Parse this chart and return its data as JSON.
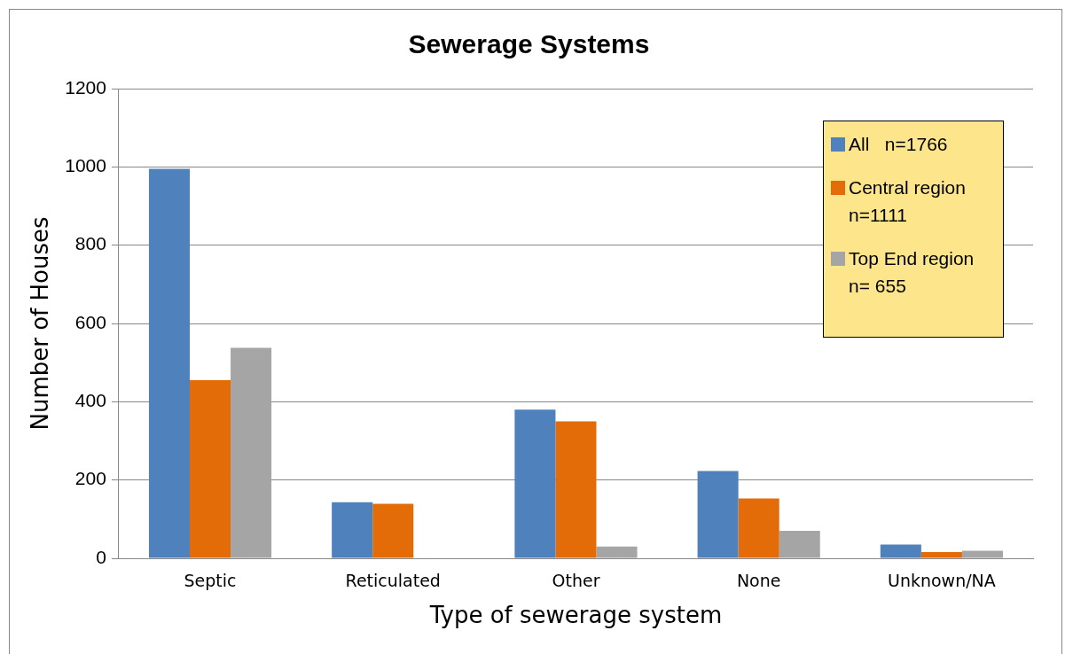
{
  "chart_data": {
    "type": "bar",
    "title": "Sewerage Systems",
    "xlabel": "Type of sewerage system",
    "ylabel": "Number of Houses",
    "categories": [
      "Septic",
      "Reticulated",
      "Other",
      "None",
      "Unknown/NA"
    ],
    "series": [
      {
        "name": "All   n=1766",
        "color": "#4f81bd",
        "values": [
          995,
          143,
          380,
          223,
          35
        ]
      },
      {
        "name": "Central region n=1111",
        "color": "#e36c09",
        "values": [
          455,
          139,
          350,
          153,
          16
        ]
      },
      {
        "name": "Top End region n= 655",
        "color": "#a5a5a5",
        "values": [
          538,
          0,
          30,
          70,
          19
        ]
      }
    ],
    "ylim": [
      0,
      1200
    ],
    "yticks": [
      0,
      200,
      400,
      600,
      800,
      1000,
      1200
    ],
    "grid": "y",
    "legend": "top right"
  }
}
